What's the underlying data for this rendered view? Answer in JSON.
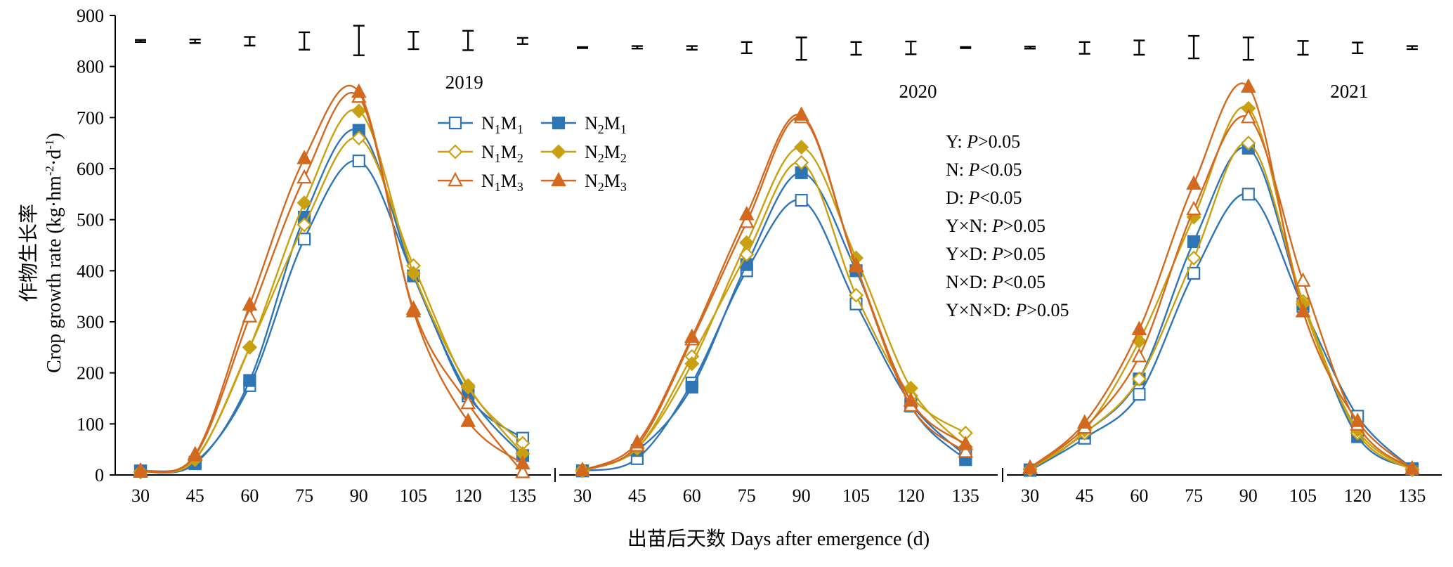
{
  "chart_data": {
    "type": "line",
    "panels": [
      {
        "year": "2019",
        "x": [
          30,
          45,
          60,
          75,
          90,
          105,
          120,
          135
        ],
        "series": [
          {
            "name": "N1M1",
            "values": [
              8,
              25,
              175,
              462,
              615,
              390,
              155,
              72
            ]
          },
          {
            "name": "N2M1",
            "values": [
              7,
              22,
              185,
              505,
              675,
              390,
              160,
              38
            ]
          },
          {
            "name": "N1M2",
            "values": [
              6,
              30,
              250,
              490,
              660,
              410,
              172,
              62
            ]
          },
          {
            "name": "N2M2",
            "values": [
              6,
              32,
              250,
              533,
              713,
              395,
              175,
              42
            ]
          },
          {
            "name": "N1M3",
            "values": [
              8,
              38,
              310,
              582,
              740,
              325,
              140,
              5
            ]
          },
          {
            "name": "N2M3",
            "values": [
              6,
              40,
              333,
              620,
              750,
              320,
              105,
              22
            ]
          }
        ],
        "error_bars": [
          [
            848,
            852
          ],
          [
            846,
            853
          ],
          [
            841,
            858
          ],
          [
            833,
            867
          ],
          [
            822,
            880
          ],
          [
            834,
            868
          ],
          [
            832,
            870
          ],
          [
            844,
            856
          ]
        ],
        "error_center": 850
      },
      {
        "year": "2020",
        "x": [
          30,
          45,
          60,
          75,
          90,
          105,
          120,
          135
        ],
        "series": [
          {
            "name": "N1M1",
            "values": [
              8,
              32,
              180,
              400,
              538,
              335,
              140,
              38
            ]
          },
          {
            "name": "N2M1",
            "values": [
              8,
              48,
              172,
              412,
              592,
              400,
              135,
              30
            ]
          },
          {
            "name": "N1M2",
            "values": [
              10,
              52,
              232,
              432,
              612,
              352,
              155,
              82
            ]
          },
          {
            "name": "N2M2",
            "values": [
              8,
              52,
              218,
              455,
              642,
              425,
              170,
              55
            ]
          },
          {
            "name": "N1M3",
            "values": [
              9,
              57,
              265,
              495,
              700,
              408,
              135,
              45
            ]
          },
          {
            "name": "N2M3",
            "values": [
              9,
              63,
              270,
              510,
              705,
              410,
              145,
              60
            ]
          }
        ],
        "error_bars": [
          [
            836,
            838
          ],
          [
            835,
            840
          ],
          [
            833,
            840
          ],
          [
            826,
            848
          ],
          [
            813,
            857
          ],
          [
            823,
            848
          ],
          [
            824,
            849
          ],
          null
        ],
        "error_center": 837
      },
      {
        "year": "2021",
        "x": [
          30,
          45,
          60,
          75,
          90,
          105,
          120,
          135
        ],
        "series": [
          {
            "name": "N1M1",
            "values": [
              9,
              72,
              158,
              395,
              550,
              330,
              115,
              12
            ]
          },
          {
            "name": "N2M1",
            "values": [
              10,
              82,
              188,
              457,
              640,
              335,
              75,
              12
            ]
          },
          {
            "name": "N1M2",
            "values": [
              11,
              82,
              188,
              425,
              650,
              340,
              82,
              10
            ]
          },
          {
            "name": "N2M2",
            "values": [
              11,
              88,
              262,
              505,
              718,
              335,
              88,
              11
            ]
          },
          {
            "name": "N1M3",
            "values": [
              13,
              92,
              232,
              520,
              700,
              380,
              98,
              12
            ]
          },
          {
            "name": "N2M3",
            "values": [
              14,
              102,
              285,
              570,
              760,
              320,
              105,
              12
            ]
          }
        ],
        "error_bars": [
          [
            835,
            839
          ],
          [
            825,
            848
          ],
          [
            823,
            851
          ],
          [
            816,
            860
          ],
          [
            813,
            857
          ],
          [
            823,
            850
          ],
          [
            826,
            847
          ],
          [
            834,
            840
          ]
        ],
        "error_center": 837
      }
    ],
    "legend": [
      {
        "id": "N1M1",
        "base": "N",
        "sub1": "1",
        "mid": "M",
        "sub2": "1",
        "color": "#2e75b6",
        "marker": "square",
        "filled": false
      },
      {
        "id": "N2M1",
        "base": "N",
        "sub1": "2",
        "mid": "M",
        "sub2": "1",
        "color": "#2e75b6",
        "marker": "square",
        "filled": true
      },
      {
        "id": "N1M2",
        "base": "N",
        "sub1": "1",
        "mid": "M",
        "sub2": "2",
        "color": "#c9a00f",
        "marker": "diamond",
        "filled": false
      },
      {
        "id": "N2M2",
        "base": "N",
        "sub1": "2",
        "mid": "M",
        "sub2": "2",
        "color": "#c9a00f",
        "marker": "diamond",
        "filled": true
      },
      {
        "id": "N1M3",
        "base": "N",
        "sub1": "1",
        "mid": "M",
        "sub2": "3",
        "color": "#d2691e",
        "marker": "triangle",
        "filled": false
      },
      {
        "id": "N2M3",
        "base": "N",
        "sub1": "2",
        "mid": "M",
        "sub2": "3",
        "color": "#d2691e",
        "marker": "triangle",
        "filled": true
      }
    ],
    "stats": [
      {
        "label": "Y: ",
        "p": "P",
        "cmp": ">0.05"
      },
      {
        "label": "N: ",
        "p": "P",
        "cmp": "<0.05"
      },
      {
        "label": "D: ",
        "p": "P",
        "cmp": "<0.05"
      },
      {
        "label": "Y×N: ",
        "p": "P",
        "cmp": ">0.05"
      },
      {
        "label": "Y×D: ",
        "p": "P",
        "cmp": ">0.05"
      },
      {
        "label": "N×D: ",
        "p": "P",
        "cmp": "<0.05"
      },
      {
        "label": "Y×N×D: ",
        "p": "P",
        "cmp": ">0.05"
      }
    ],
    "ylim": [
      0,
      900
    ],
    "yticks": [
      0,
      100,
      200,
      300,
      400,
      500,
      600,
      700,
      800,
      900
    ],
    "xticks": [
      30,
      45,
      60,
      75,
      90,
      105,
      120,
      135
    ],
    "ylabel_cn": "作物生长率",
    "ylabel_en": "Crop growth rate (kg·hm",
    "ylabel_sup1": "-2",
    "ylabel_mid": "·d",
    "ylabel_sup2": "-1",
    "ylabel_end": ")",
    "xlabel": "出苗后天数 Days after emergence (d)",
    "colors": {
      "blue": "#2e75b6",
      "gold": "#c9a00f",
      "orange": "#d2691e",
      "axis": "#000000"
    }
  }
}
